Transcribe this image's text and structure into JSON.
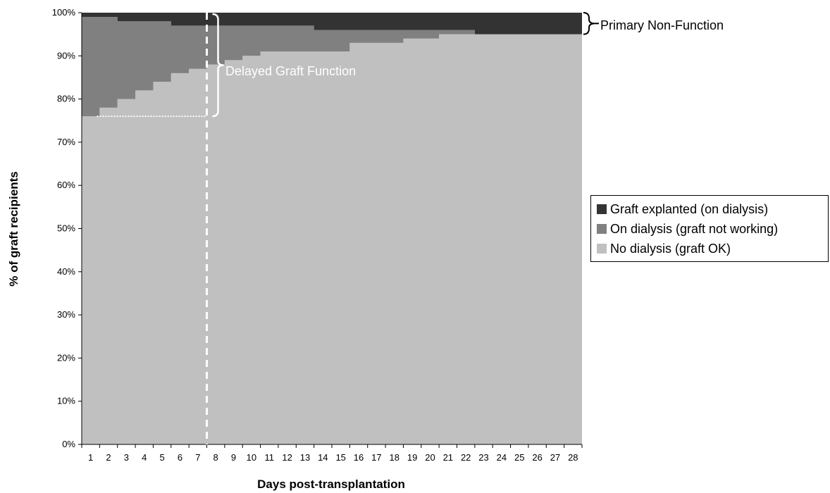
{
  "chart_data": {
    "type": "area",
    "stacked": true,
    "step": true,
    "x": [
      1,
      2,
      3,
      4,
      5,
      6,
      7,
      8,
      9,
      10,
      11,
      12,
      13,
      14,
      15,
      16,
      17,
      18,
      19,
      20,
      21,
      22,
      23,
      24,
      25,
      26,
      27,
      28
    ],
    "xlabel": "Days post-transplantation",
    "ylabel": "% of graft recipients",
    "ylim": [
      0,
      100
    ],
    "yticks": [
      "0%",
      "10%",
      "20%",
      "30%",
      "40%",
      "50%",
      "60%",
      "70%",
      "80%",
      "90%",
      "100%"
    ],
    "series": [
      {
        "name": "No dialysis (graft OK)",
        "color": "#c0c0c0",
        "values": [
          76,
          78,
          80,
          82,
          84,
          86,
          87,
          88,
          89,
          90,
          91,
          91,
          91,
          91,
          91,
          93,
          93,
          93,
          94,
          94,
          95,
          95,
          95,
          95,
          95,
          95,
          95,
          95
        ]
      },
      {
        "name": "On dialysis (graft not working)",
        "color": "#808080",
        "values": [
          23,
          21,
          18,
          16,
          14,
          11,
          10,
          9,
          8,
          7,
          6,
          6,
          6,
          5,
          5,
          3,
          3,
          3,
          2,
          2,
          1,
          1,
          0,
          0,
          0,
          0,
          0,
          0
        ]
      },
      {
        "name": "Graft explanted (on dialysis)",
        "color": "#333333",
        "values": [
          1,
          1,
          2,
          2,
          2,
          3,
          3,
          3,
          3,
          3,
          3,
          3,
          3,
          4,
          4,
          4,
          4,
          4,
          4,
          4,
          4,
          4,
          5,
          5,
          5,
          5,
          5,
          5
        ]
      }
    ],
    "legend_order": [
      2,
      1,
      0
    ],
    "legend_position": "right",
    "grid": false,
    "annotations": {
      "primary_non_function": "Primary Non-Function",
      "delayed_graft_function": "Delayed Graft Function",
      "cutoff_day": 8
    }
  }
}
